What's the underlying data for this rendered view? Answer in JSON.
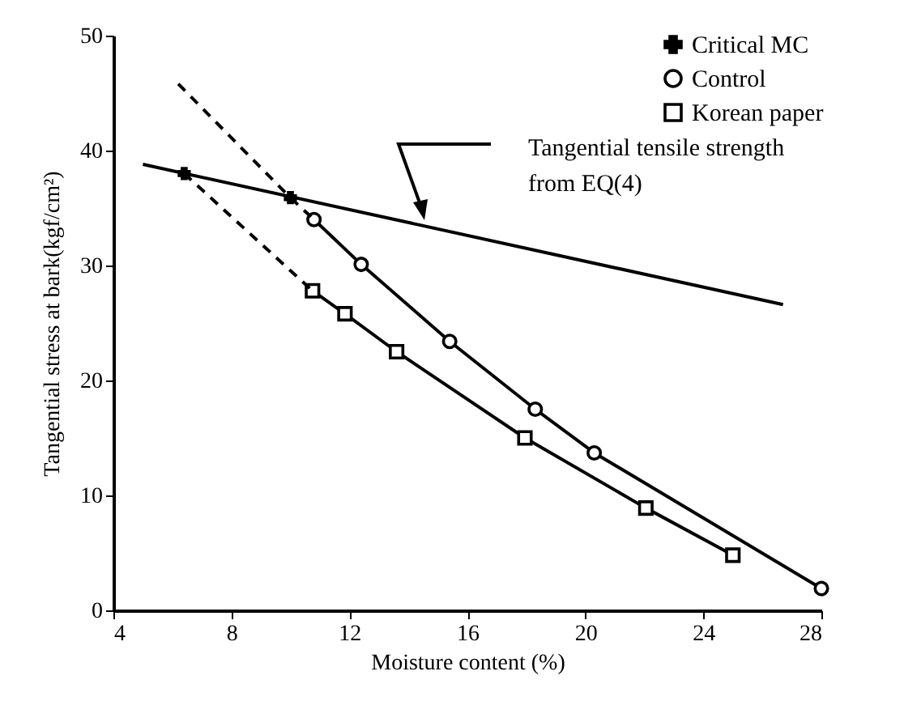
{
  "chart_data": {
    "type": "line",
    "xlabel": "Moisture  content  (%)",
    "ylabel": "Tangential stress at bark(kgf/cm²)",
    "xlim": [
      4,
      28
    ],
    "xticks": [
      4,
      8,
      12,
      16,
      20,
      24,
      28
    ],
    "ylim": [
      0,
      50
    ],
    "yticks": [
      0,
      10,
      20,
      30,
      40,
      50
    ],
    "grid": false,
    "legend": "top right",
    "series": [
      {
        "name": "Critical MC",
        "type": "scatter",
        "marker": "cross",
        "color": "#000000",
        "x": [
          6.4,
          10.0
        ],
        "values": [
          38.0,
          35.9
        ]
      },
      {
        "name": "Control",
        "marker": "circle",
        "color": "#000000",
        "x": [
          10.8,
          12.4,
          15.4,
          18.3,
          20.3,
          28.0
        ],
        "values": [
          34.0,
          30.1,
          23.4,
          17.5,
          13.7,
          1.9
        ]
      },
      {
        "name": "Korean paper",
        "marker": "square",
        "color": "#000000",
        "x": [
          10.75,
          11.85,
          13.6,
          17.95,
          22.05,
          25.0
        ],
        "values": [
          27.8,
          25.8,
          22.5,
          15.0,
          8.9,
          4.8
        ]
      },
      {
        "type": "line",
        "marker": "none",
        "color": "#000000",
        "x": [
          5.0,
          26.7
        ],
        "values": [
          38.8,
          26.6
        ]
      },
      {
        "type": "line",
        "marker": "none",
        "line_style": "dashed",
        "color": "#000000",
        "x": [
          6.2,
          10.0,
          10.8
        ],
        "values": [
          45.8,
          35.9,
          34.0
        ]
      },
      {
        "type": "line",
        "marker": "none",
        "line_style": "dashed",
        "color": "#000000",
        "x": [
          6.4,
          10.75
        ],
        "values": [
          38.0,
          27.8
        ]
      }
    ],
    "annotations": [
      "Tangential tensile strength\nfrom EQ(4)"
    ]
  }
}
